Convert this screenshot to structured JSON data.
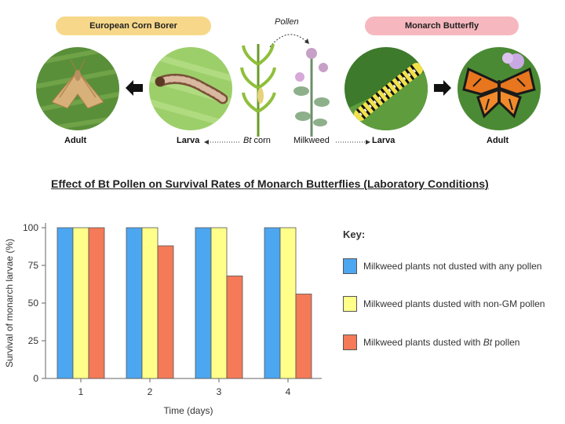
{
  "diagram": {
    "ecb_header": "European Corn Borer",
    "monarch_header": "Monarch Butterfly",
    "pollen_label": "Pollen",
    "labels": {
      "adult_left": "Adult",
      "larva_left": "Larva",
      "bt": "Bt",
      "corn": " corn",
      "milkweed": "Milkweed",
      "larva_right": "Larva",
      "adult_right": "Adult"
    }
  },
  "chart_title": "Effect of Bt Pollen on Survival Rates of Monarch Butterflies (Laboratory Conditions)",
  "key": {
    "title": "Key:",
    "items": [
      {
        "label": "Milkweed plants not dusted with any pollen",
        "color": "#4da6f0"
      },
      {
        "label": "Milkweed plants dusted with non-GM pollen",
        "color": "#ffff8a"
      },
      {
        "label_prefix": "Milkweed plants dusted with ",
        "label_italic": "Bt",
        "label_suffix": " pollen",
        "color": "#f47a58"
      }
    ]
  },
  "chart_data": {
    "type": "bar",
    "categories": [
      "1",
      "2",
      "3",
      "4"
    ],
    "series": [
      {
        "name": "Milkweed plants not dusted with any pollen",
        "values": [
          100,
          100,
          100,
          100
        ],
        "color": "#4da6f0"
      },
      {
        "name": "Milkweed plants dusted with non-GM pollen",
        "values": [
          100,
          100,
          100,
          100
        ],
        "color": "#ffff8a"
      },
      {
        "name": "Milkweed plants dusted with Bt pollen",
        "values": [
          100,
          88,
          68,
          56
        ],
        "color": "#f47a58"
      }
    ],
    "xlabel": "Time (days)",
    "ylabel": "Survival of monarch larvae (%)",
    "ylim": [
      0,
      100
    ],
    "yticks": [
      0,
      25,
      50,
      75,
      100
    ],
    "grid": false
  }
}
